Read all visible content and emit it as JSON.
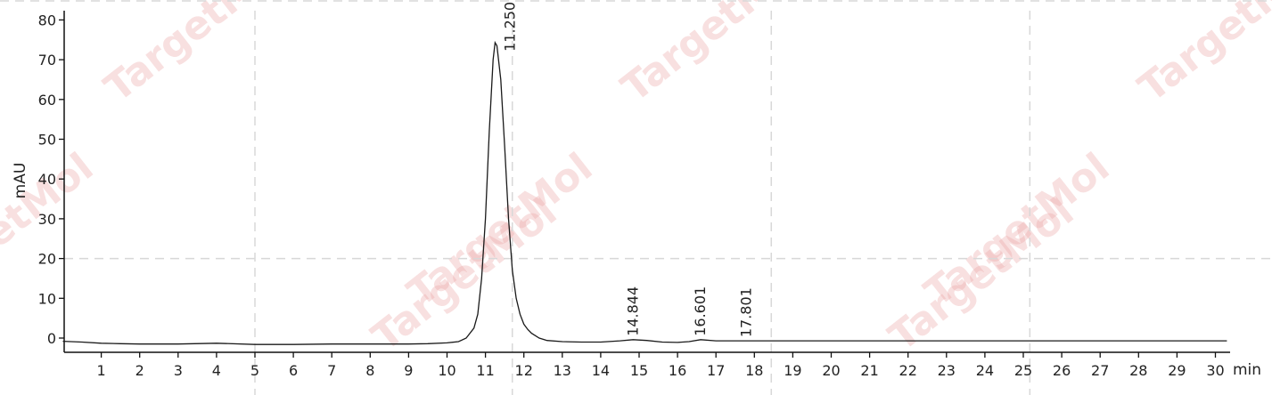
{
  "chart_data": {
    "type": "line",
    "title": "",
    "xlabel": "min",
    "ylabel": "mAU",
    "xlim": [
      0,
      30.5
    ],
    "ylim": [
      -4,
      82
    ],
    "x_ticks": [
      1,
      2,
      3,
      4,
      5,
      6,
      7,
      8,
      9,
      10,
      11,
      12,
      13,
      14,
      15,
      16,
      17,
      18,
      19,
      20,
      21,
      22,
      23,
      24,
      25,
      26,
      27,
      28,
      29,
      30
    ],
    "y_ticks": [
      0,
      10,
      20,
      30,
      40,
      50,
      60,
      70,
      80
    ],
    "grid": "dashed",
    "series": [
      {
        "x": [
          0,
          0.5,
          1,
          1.5,
          2,
          3,
          4,
          5,
          6,
          7,
          8,
          9,
          9.5,
          10,
          10.3,
          10.5,
          10.7,
          10.8,
          10.9,
          11.0,
          11.1,
          11.2,
          11.25,
          11.3,
          11.4,
          11.5,
          11.6,
          11.7,
          11.8,
          11.9,
          12.0,
          12.1,
          12.2,
          12.4,
          12.6,
          13.0,
          13.5,
          14.0,
          14.5,
          14.844,
          15.2,
          15.6,
          16.0,
          16.3,
          16.601,
          17.0,
          17.5,
          17.801,
          18.5,
          20,
          22,
          24,
          26,
          28,
          30,
          30.3
        ],
        "y": [
          -0.8,
          -1.0,
          -1.3,
          -1.4,
          -1.5,
          -1.5,
          -1.3,
          -1.6,
          -1.6,
          -1.5,
          -1.5,
          -1.5,
          -1.4,
          -1.2,
          -0.9,
          0.0,
          2.5,
          6.0,
          15.0,
          30.0,
          52.0,
          70.0,
          74.3,
          73.5,
          65.0,
          48.0,
          30.0,
          17.0,
          10.0,
          6.0,
          3.5,
          2.2,
          1.2,
          0.0,
          -0.6,
          -0.9,
          -1.0,
          -1.0,
          -0.7,
          -0.4,
          -0.6,
          -1.0,
          -1.1,
          -0.9,
          -0.4,
          -0.7,
          -0.7,
          -0.7,
          -0.7,
          -0.7,
          -0.7,
          -0.7,
          -0.7,
          -0.7,
          -0.7,
          -0.7
        ]
      }
    ],
    "peak_labels": [
      {
        "x": 11.25,
        "y": 74.3,
        "label": "11.250"
      },
      {
        "x": 14.844,
        "y": -0.4,
        "label": "14.844"
      },
      {
        "x": 16.601,
        "y": -0.4,
        "label": "16.601"
      },
      {
        "x": 17.801,
        "y": -0.7,
        "label": "17.801"
      }
    ],
    "watermark": "TargetMol"
  }
}
